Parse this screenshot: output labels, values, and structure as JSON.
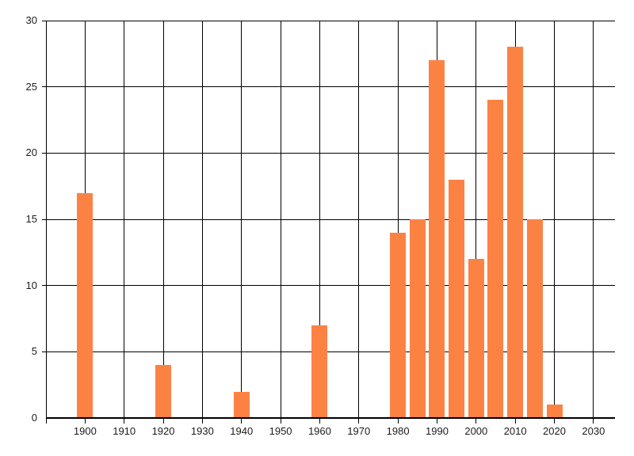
{
  "chart_data": {
    "type": "bar",
    "title": "",
    "xlabel": "",
    "ylabel": "",
    "x": [
      1900,
      1920,
      1940,
      1960,
      1980,
      1985,
      1990,
      1995,
      2000,
      2005,
      2010,
      2015,
      2020
    ],
    "values": [
      17,
      4,
      2,
      7,
      14,
      15,
      27,
      18,
      12,
      24,
      28,
      15,
      1
    ],
    "xlim": [
      1890,
      2035.5
    ],
    "ylim": [
      0,
      30
    ],
    "x_tick_labels": [
      "1900",
      "1910",
      "1920",
      "1930",
      "1940",
      "1950",
      "1960",
      "1970",
      "1980",
      "1990",
      "2000",
      "2010",
      "2020",
      "2030"
    ],
    "x_tick_values": [
      1900,
      1910,
      1920,
      1930,
      1940,
      1950,
      1960,
      1970,
      1980,
      1990,
      2000,
      2010,
      2020,
      2030
    ],
    "y_tick_labels": [
      "0",
      "5",
      "10",
      "15",
      "20",
      "25",
      "30"
    ],
    "y_tick_values": [
      0,
      5,
      10,
      15,
      20,
      25,
      30
    ],
    "grid": true,
    "legend_position": "none",
    "bar_color": "#FC8244",
    "grid_color": "#000000",
    "label_color": "#1c1c1c",
    "bar_width_years": 4.1
  }
}
